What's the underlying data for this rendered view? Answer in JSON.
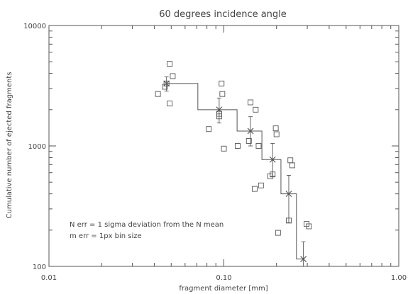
{
  "chart_data": {
    "type": "scatter",
    "title": "60 degrees incidence angle",
    "xlabel": "fragment diameter [mm]",
    "ylabel": "Cumulative number of ejected fragments",
    "xscale": "log",
    "yscale": "log",
    "xlim": [
      0.01,
      1.0
    ],
    "ylim": [
      100,
      10000
    ],
    "x_ticks": [
      0.01,
      0.1,
      1.0
    ],
    "x_tick_labels": [
      "0.01",
      "0.10",
      "1.00"
    ],
    "y_ticks": [
      100,
      1000,
      10000
    ],
    "y_tick_labels": [
      "100",
      "1000",
      "10000"
    ],
    "grid": false,
    "annotations": [
      "N err = 1 sigma deviation from the N mean",
      "m err = 1px bin size"
    ],
    "series": [
      {
        "marker": "square",
        "x": [
          0.042,
          0.046,
          0.047,
          0.049,
          0.049,
          0.051,
          0.082,
          0.094,
          0.094,
          0.097,
          0.098,
          0.1,
          0.12,
          0.139,
          0.142,
          0.15,
          0.152,
          0.158,
          0.163,
          0.184,
          0.19,
          0.198,
          0.2,
          0.204,
          0.235,
          0.24,
          0.246,
          0.297,
          0.306
        ],
        "y": [
          2700,
          3100,
          3300,
          2250,
          4800,
          3800,
          1380,
          1850,
          1760,
          3300,
          2700,
          950,
          1000,
          1100,
          2300,
          440,
          2000,
          1000,
          470,
          560,
          580,
          1400,
          1250,
          190,
          240,
          760,
          690,
          225,
          215
        ]
      },
      {
        "marker": "cross",
        "x": [
          0.047,
          0.094,
          0.142,
          0.19,
          0.235,
          0.285
        ],
        "y": [
          3300,
          2000,
          1330,
          770,
          400,
          115
        ],
        "yerr_low": [
          2850,
          1550,
          1000,
          560,
          230,
          100
        ],
        "yerr_high": [
          3750,
          2500,
          1750,
          1050,
          570,
          160
        ]
      },
      {
        "style": "step",
        "x": [
          0.047,
          0.071,
          0.071,
          0.119,
          0.119,
          0.165,
          0.165,
          0.212,
          0.212,
          0.26,
          0.26,
          0.285
        ],
        "y": [
          3300,
          3300,
          2000,
          2000,
          1330,
          1330,
          770,
          770,
          400,
          400,
          115,
          115
        ]
      }
    ]
  }
}
